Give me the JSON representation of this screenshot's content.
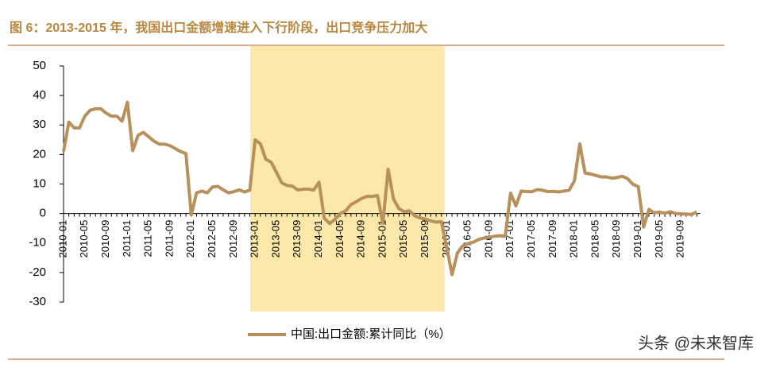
{
  "chart_data": {
    "type": "line",
    "title": "图 6：2013-2015 年，我国出口金额增速进入下行阶段，出口竞争压力加大",
    "watermark": "头条 @未来智库",
    "categories": [
      "2010-01",
      null,
      null,
      null,
      "2010-05",
      null,
      null,
      null,
      "2010-09",
      null,
      null,
      null,
      "2011-01",
      null,
      null,
      null,
      "2011-05",
      null,
      null,
      null,
      "2011-09",
      null,
      null,
      null,
      "2012-01",
      null,
      null,
      null,
      "2012-05",
      null,
      null,
      null,
      "2012-09",
      null,
      null,
      null,
      "2013-01",
      null,
      null,
      null,
      "2013-05",
      null,
      null,
      null,
      "2013-09",
      null,
      null,
      null,
      "2014-01",
      null,
      null,
      null,
      "2014-05",
      null,
      null,
      null,
      "2014-09",
      null,
      null,
      null,
      "2015-01",
      null,
      null,
      null,
      "2015-05",
      null,
      null,
      null,
      "2015-09",
      null,
      null,
      null,
      "2016-01",
      null,
      null,
      null,
      "2016-05",
      null,
      null,
      null,
      "2016-09",
      null,
      null,
      null,
      "2017-01",
      null,
      null,
      null,
      "2017-05",
      null,
      null,
      null,
      "2017-09",
      null,
      null,
      null,
      "2018-01",
      null,
      null,
      null,
      "2018-05",
      null,
      null,
      null,
      "2018-09",
      null,
      null,
      null,
      "2019-01",
      null,
      null,
      null,
      "2019-05",
      null,
      null,
      null,
      "2019-09",
      null,
      null,
      null
    ],
    "series": [
      {
        "name": "中国:出口金额:累计同比（%）",
        "color": "#b8905c",
        "values": [
          21,
          31,
          29,
          29,
          33,
          35,
          35.5,
          35.5,
          34,
          33,
          33,
          31.3,
          37.7,
          21.3,
          26.5,
          27.5,
          26,
          24.5,
          23.5,
          23.5,
          23,
          22,
          21,
          20.3,
          -0.5,
          7,
          7.6,
          7,
          9,
          9.2,
          8,
          7,
          7.4,
          8,
          7.3,
          7.9,
          25,
          23.6,
          18.4,
          17.4,
          14,
          10.4,
          9.5,
          9.3,
          8,
          8.2,
          8.3,
          7.9,
          10.6,
          -1.6,
          -3.4,
          -2,
          0,
          0.9,
          3,
          4,
          5.1,
          5.8,
          5.8,
          6.1,
          -3.3,
          15,
          4.9,
          1.7,
          0.6,
          0.9,
          -0.8,
          -1.5,
          -1.9,
          -2.5,
          -2.9,
          -2.8,
          -11.5,
          -20.7,
          -13.4,
          -11,
          -10.2,
          -9.7,
          -8.8,
          -8.3,
          -8,
          -7.7,
          -7.5,
          -7.7,
          6.9,
          2.6,
          7.6,
          7.4,
          7.4,
          8.1,
          7.9,
          7.4,
          7.5,
          7.3,
          7.6,
          7.9,
          11.1,
          23.6,
          13.7,
          13.4,
          12.9,
          12.4,
          12.4,
          12,
          12.2,
          12.6,
          11.8,
          9.9,
          9.1,
          -4.6,
          1.4,
          0.2,
          0.5,
          0.1,
          0.6,
          0,
          -0.1,
          -0.2,
          -0.3,
          0.5
        ]
      }
    ],
    "ylim": [
      -30,
      50
    ],
    "yticks": [
      -30,
      -20,
      -10,
      0,
      10,
      20,
      30,
      40,
      50
    ],
    "legend": "bottom"
  }
}
